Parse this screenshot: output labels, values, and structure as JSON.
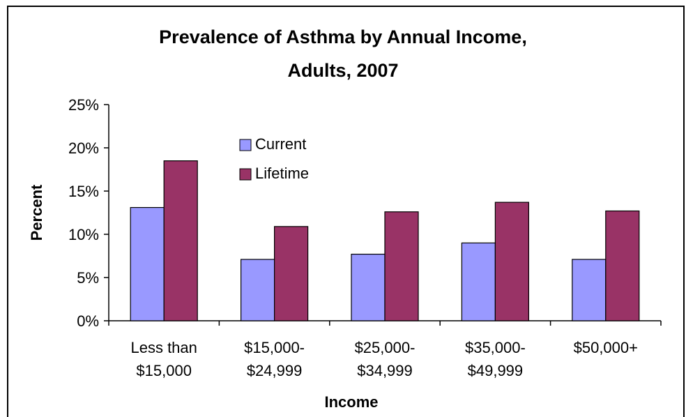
{
  "chart_data": {
    "type": "bar",
    "title_line1": "Prevalence of Asthma by Annual Income,",
    "title_line2": "Adults, 2007",
    "xlabel": "Income",
    "ylabel": "Percent",
    "ylim": [
      0,
      25
    ],
    "yticks": [
      "0%",
      "5%",
      "10%",
      "15%",
      "20%",
      "25%"
    ],
    "categories": [
      [
        "Less than",
        "$15,000"
      ],
      [
        "$15,000-",
        "$24,999"
      ],
      [
        "$25,000-",
        "$34,999"
      ],
      [
        "$35,000-",
        "$49,999"
      ],
      [
        "$50,000+",
        ""
      ]
    ],
    "series": [
      {
        "name": "Current",
        "color": "#9999ff",
        "values": [
          13.1,
          7.1,
          7.7,
          9.0,
          7.1
        ]
      },
      {
        "name": "Lifetime",
        "color": "#993366",
        "values": [
          18.5,
          10.9,
          12.6,
          13.7,
          12.7
        ]
      }
    ],
    "grid": false,
    "legend": "upper-middle"
  }
}
